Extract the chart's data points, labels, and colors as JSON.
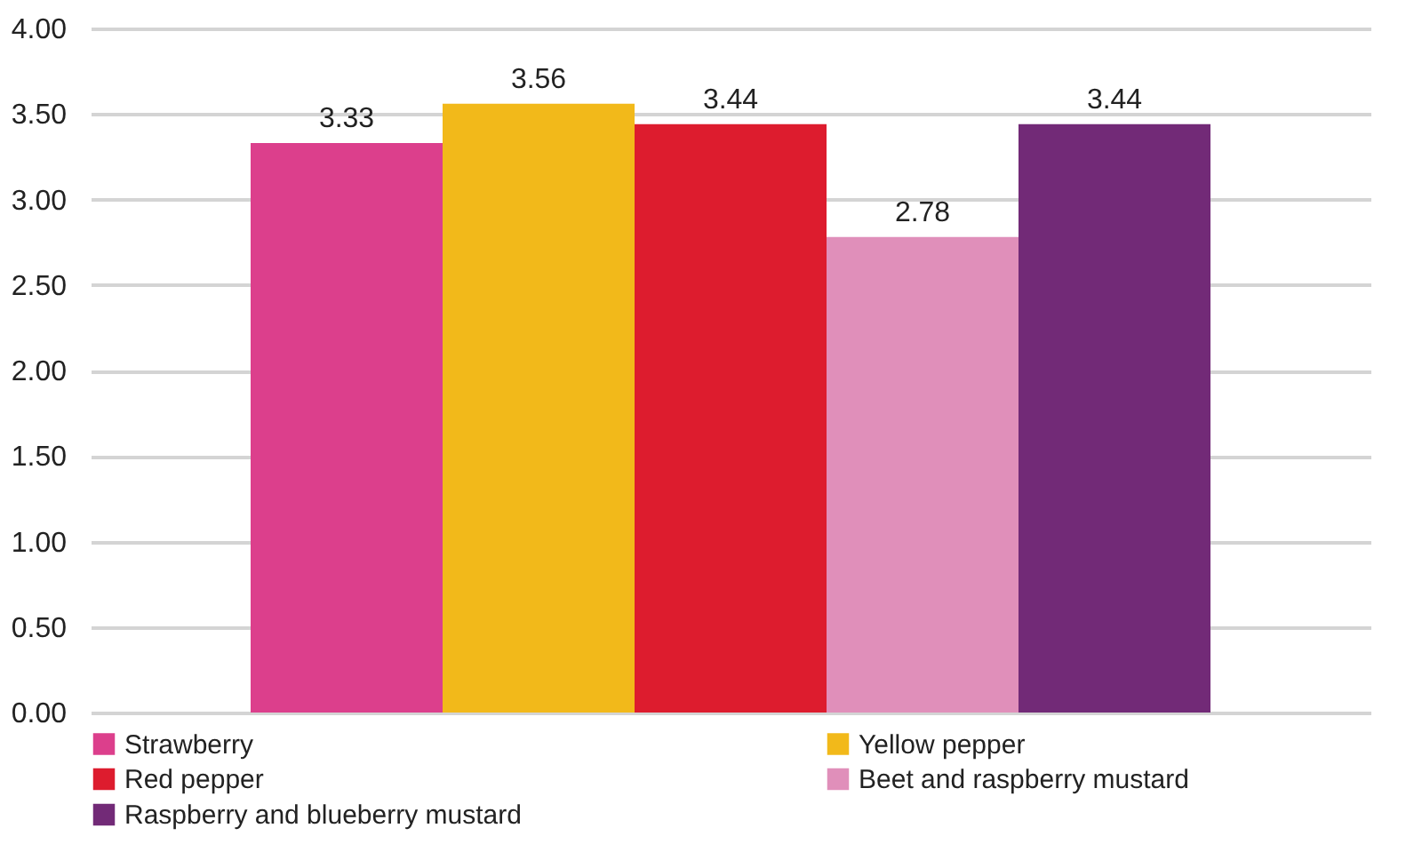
{
  "chart_data": {
    "type": "bar",
    "categories": [
      null
    ],
    "series": [
      {
        "name": "Strawberry",
        "color": "#dc3f8c",
        "values": [
          3.33
        ]
      },
      {
        "name": "Yellow pepper",
        "color": "#f2b91a",
        "values": [
          3.56
        ]
      },
      {
        "name": "Red pepper",
        "color": "#dd1c2e",
        "values": [
          3.44
        ]
      },
      {
        "name": "Beet and raspberry mustard",
        "color": "#e08fba",
        "values": [
          2.78
        ]
      },
      {
        "name": "Raspberry and blueberry mustard",
        "color": "#722a77",
        "values": [
          3.44
        ]
      }
    ],
    "ylim": [
      0,
      4
    ],
    "yticks": [
      {
        "value": 0,
        "label": "0.00"
      },
      {
        "value": 0.5,
        "label": "0.50"
      },
      {
        "value": 1,
        "label": "1.00"
      },
      {
        "value": 1.5,
        "label": "1.50"
      },
      {
        "value": 2,
        "label": "2.00"
      },
      {
        "value": 2.5,
        "label": "2.50"
      },
      {
        "value": 3,
        "label": "3.00"
      },
      {
        "value": 3.5,
        "label": "3.50"
      },
      {
        "value": 4,
        "label": "4.00"
      }
    ],
    "grid": "y",
    "legend": "bottom",
    "data_labels": true,
    "tick_labels": "y"
  }
}
